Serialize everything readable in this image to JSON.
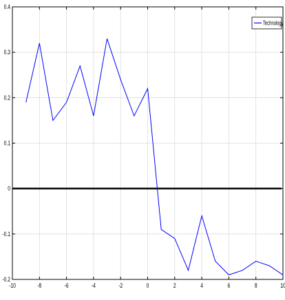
{
  "chart_data": {
    "type": "line",
    "title": "",
    "xlabel": "",
    "ylabel": "",
    "xlim": [
      -10,
      10
    ],
    "ylim": [
      -0.2,
      0.4
    ],
    "grid": true,
    "x_ticks": [
      -10,
      -8,
      -6,
      -4,
      -2,
      0,
      2,
      4,
      6,
      8,
      10
    ],
    "x_tick_labels": [
      "-10",
      "-8",
      "-6",
      "-4",
      "-2",
      "0",
      "2",
      "4",
      "6",
      "8",
      "10"
    ],
    "y_ticks": [
      -0.2,
      -0.1,
      0,
      0.1,
      0.2,
      0.3,
      0.4
    ],
    "y_tick_labels": [
      "-0.2",
      "-0.1",
      "0",
      "0.1",
      "0.2",
      "0.3",
      "0.4"
    ],
    "legend_position": "top-right",
    "reference_line": {
      "y": 0,
      "color": "#000000"
    },
    "series": [
      {
        "name": "Technology",
        "color": "#0000ff",
        "x": [
          -9,
          -8,
          -7,
          -6,
          -5,
          -4,
          -3,
          -2,
          -1,
          0,
          1,
          2,
          3,
          4,
          5,
          6,
          7,
          8,
          9,
          10
        ],
        "y": [
          0.19,
          0.32,
          0.15,
          0.19,
          0.27,
          0.16,
          0.33,
          0.24,
          0.16,
          0.22,
          -0.09,
          -0.11,
          -0.18,
          -0.06,
          -0.16,
          -0.19,
          -0.18,
          -0.16,
          -0.17,
          -0.19
        ]
      }
    ]
  }
}
